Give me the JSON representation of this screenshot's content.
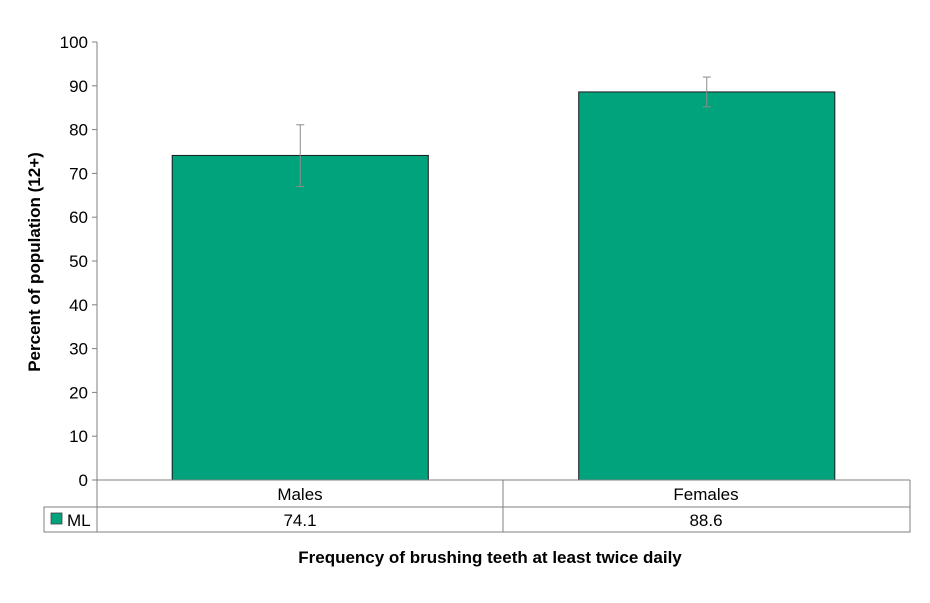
{
  "chart_data": {
    "type": "bar",
    "categories": [
      "Males",
      "Females"
    ],
    "series": [
      {
        "name": "ML",
        "values": [
          74.1,
          88.6
        ],
        "error_low": [
          67.0,
          85.2
        ],
        "error_high": [
          81.1,
          92.0
        ],
        "color": "#00A37C"
      }
    ],
    "ylim": [
      0,
      100
    ],
    "yticks": [
      "0",
      "10",
      "20",
      "30",
      "40",
      "50",
      "60",
      "70",
      "80",
      "90",
      "100"
    ],
    "ylabel": "Percent of population (12+)",
    "xlabel": "Frequency of brushing teeth at least twice daily",
    "table_values": [
      "74.1",
      "88.6"
    ],
    "grid": false,
    "legend": "data-table"
  }
}
